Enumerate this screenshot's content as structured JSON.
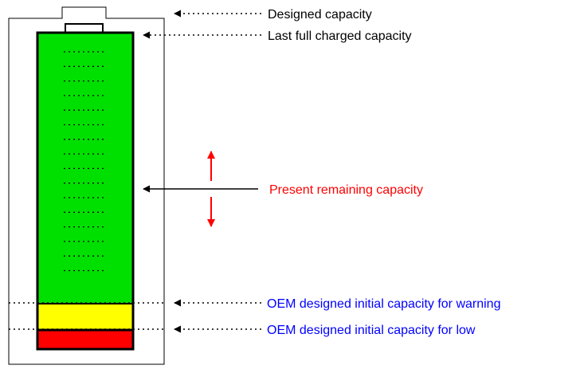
{
  "labels": {
    "designed_capacity": "Designed capacity",
    "last_full_charged_capacity": "Last full charged capacity",
    "present_remaining_capacity": "Present remaining capacity",
    "oem_warning_capacity": "OEM designed initial capacity for warning",
    "oem_low_capacity": "OEM designed initial capacity for low"
  },
  "colors": {
    "outline": "#000000",
    "charge_level": "#00e000",
    "warning_level": "#ffff00",
    "low_level": "#ff0000",
    "highlight_text": "#ff0000",
    "oem_text": "#0000ff",
    "arrow_red": "#ff0000"
  }
}
